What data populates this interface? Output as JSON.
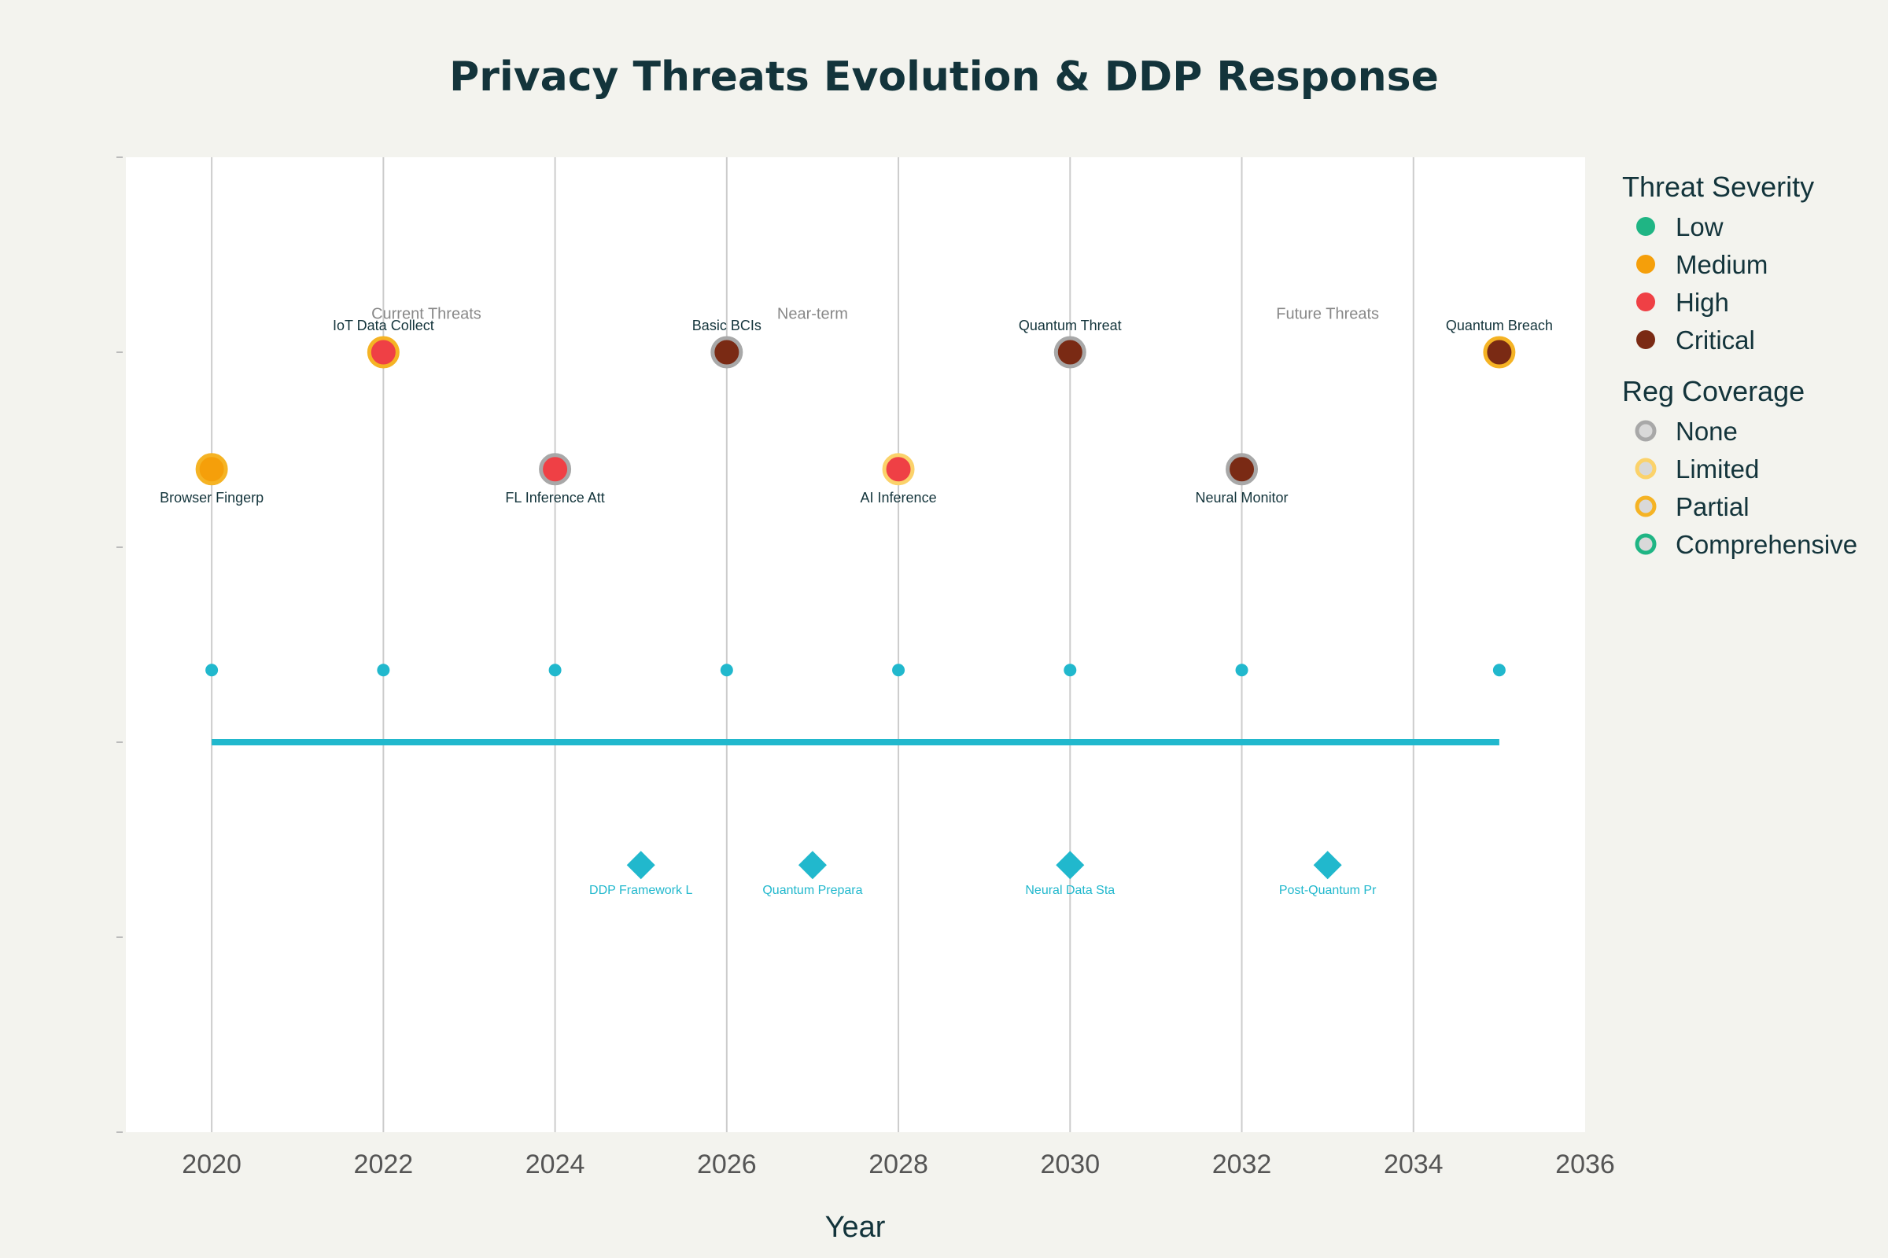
{
  "chart_data": {
    "type": "scatter",
    "title": "Privacy Threats Evolution & DDP Response",
    "xlabel": "Year",
    "xlim": [
      2019,
      2036
    ],
    "ylim": [
      0,
      5
    ],
    "x_ticks": [
      2020,
      2022,
      2024,
      2026,
      2028,
      2030,
      2032,
      2034,
      2036
    ],
    "threats": [
      {
        "year": 2020,
        "label": "Browser Fingerp",
        "severity": "Medium",
        "coverage": "Partial",
        "level": 3.4,
        "label_pos": "below"
      },
      {
        "year": 2022,
        "label": "IoT Data Collect",
        "severity": "High",
        "coverage": "Partial",
        "level": 4.0,
        "label_pos": "above"
      },
      {
        "year": 2024,
        "label": "FL Inference Att",
        "severity": "High",
        "coverage": "None",
        "level": 3.4,
        "label_pos": "below"
      },
      {
        "year": 2026,
        "label": "Basic BCIs",
        "severity": "Critical",
        "coverage": "None",
        "level": 4.0,
        "label_pos": "above"
      },
      {
        "year": 2028,
        "label": "AI Inference",
        "severity": "High",
        "coverage": "Limited",
        "level": 3.4,
        "label_pos": "below"
      },
      {
        "year": 2030,
        "label": "Quantum Threat",
        "severity": "Critical",
        "coverage": "None",
        "level": 4.0,
        "label_pos": "above"
      },
      {
        "year": 2032,
        "label": "Neural Monitor",
        "severity": "Critical",
        "coverage": "None",
        "level": 3.4,
        "label_pos": "below"
      },
      {
        "year": 2035,
        "label": "Quantum Breach",
        "severity": "Critical",
        "coverage": "Partial",
        "level": 4.0,
        "label_pos": "above"
      }
    ],
    "timeline_markers": {
      "level": 2.37,
      "years": [
        2020,
        2022,
        2024,
        2026,
        2028,
        2030,
        2032,
        2035
      ]
    },
    "timeline_line": {
      "level": 2.0,
      "from": 2020,
      "to": 2035
    },
    "responses": [
      {
        "year": 2025,
        "label": "DDP Framework L",
        "level": 1.37
      },
      {
        "year": 2027,
        "label": "Quantum Prepara",
        "level": 1.37
      },
      {
        "year": 2030,
        "label": "Neural Data Sta",
        "level": 1.37
      },
      {
        "year": 2033,
        "label": "Post-Quantum Pr",
        "level": 1.37
      }
    ],
    "periods": [
      {
        "year": 2022.5,
        "label": "Current Threats",
        "level": 4.2
      },
      {
        "year": 2027,
        "label": "Near-term",
        "level": 4.2
      },
      {
        "year": 2033,
        "label": "Future Threats",
        "level": 4.2
      }
    ],
    "legend": {
      "severity_title": "Threat Severity",
      "severity": [
        {
          "name": "Low",
          "color": "#1fb584"
        },
        {
          "name": "Medium",
          "color": "#f59f0a"
        },
        {
          "name": "High",
          "color": "#ef4045"
        },
        {
          "name": "Critical",
          "color": "#7a2a14"
        }
      ],
      "coverage_title": "Reg Coverage",
      "coverage": [
        {
          "name": "None",
          "color": "#a8a8a8"
        },
        {
          "name": "Limited",
          "color": "#fbd26a"
        },
        {
          "name": "Partial",
          "color": "#f5b324"
        },
        {
          "name": "Comprehensive",
          "color": "#1fb584"
        }
      ],
      "position": "right"
    },
    "colors": {
      "timeline": "#21b8cd",
      "response": "#21b8cd",
      "grid": "#cccccc"
    }
  }
}
